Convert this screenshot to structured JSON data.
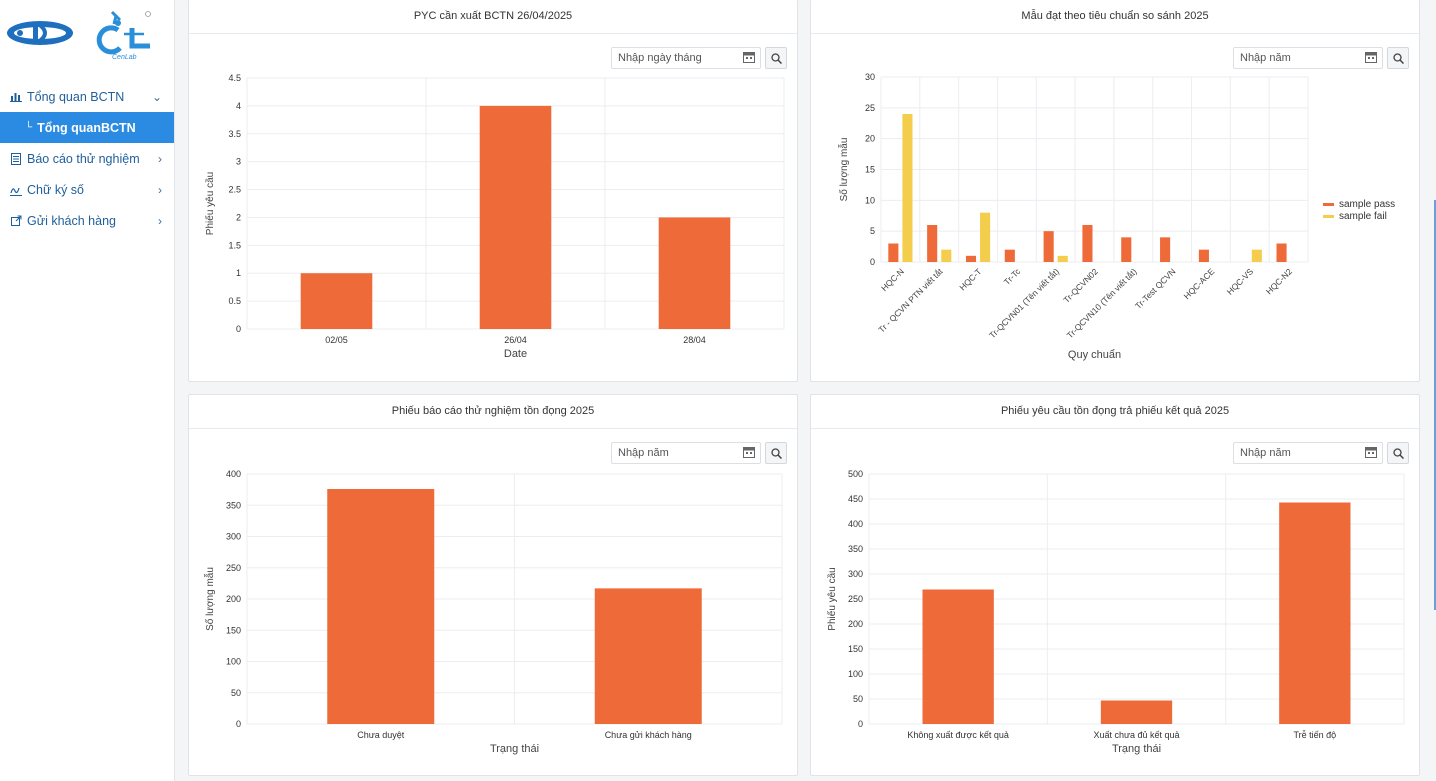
{
  "sidebar": {
    "logo_text": "CenLab",
    "items": [
      {
        "label": "Tổng quan BCTN",
        "expanded": true
      },
      {
        "label": "Báo cáo thử nghiệm"
      },
      {
        "label": "Chữ ký số"
      },
      {
        "label": "Gửi khách hàng"
      }
    ],
    "sub_item": "Tổng quanBCTN"
  },
  "cards": [
    {
      "title": "PYC cần xuất BCTN 26/04/2025",
      "placeholder": "Nhập ngày tháng"
    },
    {
      "title": "Mẫu đạt theo tiêu chuẩn so sánh 2025",
      "placeholder": "Nhập năm"
    },
    {
      "title": "Phiếu báo cáo thử nghiệm tồn đọng 2025",
      "placeholder": "Nhập năm"
    },
    {
      "title": "Phiếu yêu cầu tồn đọng trả phiếu kết quả 2025",
      "placeholder": "Nhập năm"
    }
  ],
  "colors": {
    "pass": "#ef6a39",
    "fail": "#f5cd4d",
    "bar": "#ef6a39"
  },
  "chart_data": [
    {
      "type": "bar",
      "categories": [
        "02/05",
        "26/04",
        "28/04"
      ],
      "values": [
        1,
        4,
        2
      ],
      "xlabel": "Date",
      "ylabel": "Phiếu yêu cầu",
      "ylim": [
        0,
        4.5
      ],
      "yticks": [
        "0",
        "0.5",
        "1",
        "1.5",
        "2",
        "2.5",
        "3",
        "3.5",
        "4",
        "4.5"
      ],
      "grid": true
    },
    {
      "type": "bar",
      "categories": [
        "HQC-N",
        "Tr - QCVN PTN viết tắt",
        "HQC-T",
        "Tr-Tc",
        "Tr-QCVN01 (Tên viết tắt)",
        "Tr-QCVN02",
        "Tr-QCVN10 (Tên viết tắt)",
        "Tr-Test QCVN",
        "HQC-ACE",
        "HQC-VS",
        "HQC-N2"
      ],
      "series": [
        {
          "name": "sample pass",
          "values": [
            3,
            6,
            1,
            2,
            5,
            6,
            4,
            4,
            2,
            0,
            3
          ]
        },
        {
          "name": "sample fail",
          "values": [
            24,
            2,
            8,
            0,
            1,
            0,
            0,
            0,
            0,
            2,
            0
          ]
        }
      ],
      "xlabel": "Quy chuẩn",
      "ylabel": "Số lượng mẫu",
      "ylim": [
        0,
        30
      ],
      "yticks": [
        "0",
        "5",
        "10",
        "15",
        "20",
        "25",
        "30"
      ],
      "legend": "right",
      "grid": true
    },
    {
      "type": "bar",
      "categories": [
        "Chưa duyệt",
        "Chưa gửi khách hàng"
      ],
      "values": [
        376,
        217
      ],
      "xlabel": "Trạng thái",
      "ylabel": "Số lượng mẫu",
      "ylim": [
        0,
        400
      ],
      "yticks": [
        "0",
        "50",
        "100",
        "150",
        "200",
        "250",
        "300",
        "350",
        "400"
      ],
      "grid": true
    },
    {
      "type": "bar",
      "categories": [
        "Không xuất được kết quả",
        "Xuất chưa đủ kết quả",
        "Trễ tiến độ"
      ],
      "values": [
        269,
        47,
        443
      ],
      "xlabel": "Trạng thái",
      "ylabel": "Phiếu yêu cầu",
      "ylim": [
        0,
        500
      ],
      "yticks": [
        "0",
        "50",
        "100",
        "150",
        "200",
        "250",
        "300",
        "350",
        "400",
        "450",
        "500"
      ],
      "grid": true
    }
  ]
}
